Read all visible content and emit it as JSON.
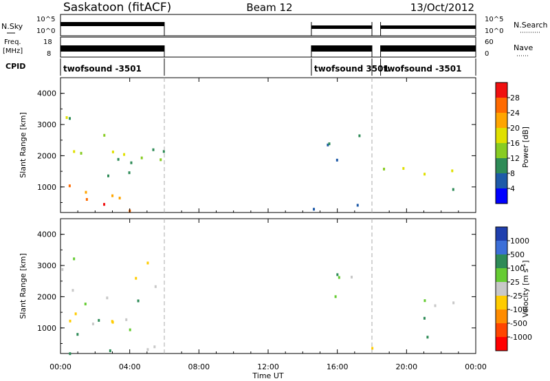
{
  "header": {
    "station": "Saskatoon (fitACF)",
    "beam": "Beam 12",
    "date": "13/Oct/2012"
  },
  "strips": {
    "nsky_label": "N.Sky",
    "nsky_ticks": [
      "10^5",
      "10^0"
    ],
    "nsearch_label": "N.Search",
    "nsearch_ticks": [
      "10^5",
      "10^0"
    ],
    "freq_label_line1": "Freq.",
    "freq_label_line2": "[MHz]",
    "freq_ticks": [
      "18",
      "8"
    ],
    "nave_label": "Nave",
    "nave_ticks": [
      "60",
      "0"
    ],
    "cpid_label": "CPID",
    "cpid_segments": [
      {
        "label": "twofsound -3501",
        "start": 0.0,
        "end": 6.0
      },
      {
        "label": "twofsound 3501",
        "start": 14.5,
        "end": 18.0
      },
      {
        "label": "twofsound -3501",
        "start": 18.5,
        "end": 24.0
      }
    ]
  },
  "axes": {
    "x_label": "Time UT",
    "x_ticks": [
      "00:00",
      "04:00",
      "08:00",
      "12:00",
      "16:00",
      "20:00",
      "00:00"
    ],
    "y_label": "Slant Range [km]",
    "y_ticks": [
      "4000",
      "3000",
      "2000",
      "1000"
    ]
  },
  "power_scale": {
    "title": "Power [dB]",
    "labels": [
      "28",
      "24",
      "20",
      "16",
      "12",
      "8",
      "4"
    ],
    "colors": [
      "#f01010",
      "#ff6a00",
      "#ffa500",
      "#e0e000",
      "#88cc22",
      "#2e8b57",
      "#1e5aa8",
      "#0000ff"
    ]
  },
  "velocity_scale": {
    "title": "Velocity [m s",
    "title_sup": "-1",
    "title_end": "]",
    "labels": [
      "1000",
      "500",
      "100",
      "25",
      "-25",
      "-100",
      "-500",
      "-1000"
    ],
    "colors": [
      "#1f3fae",
      "#3c6fd8",
      "#2e8b57",
      "#66cc33",
      "#c8c8c8",
      "#ffcc00",
      "#ff8c00",
      "#ff4500",
      "#ff0000"
    ]
  },
  "chart_data": {
    "type": "heatmap",
    "x_range_hours": [
      0,
      24
    ],
    "y_range_km": [
      180,
      4500
    ],
    "operation_periods_hours": [
      [
        0,
        6
      ],
      [
        14.5,
        18
      ],
      [
        18.5,
        24
      ]
    ],
    "power_panel": {
      "echo_regions": [
        {
          "t0": 0.0,
          "t1": 6.0,
          "r0": 200,
          "r1": 1200,
          "power_db": 26
        },
        {
          "t0": 0.0,
          "t1": 6.0,
          "r0": 1200,
          "r1": 3400,
          "power_db": 14
        },
        {
          "t0": 14.8,
          "t1": 17.3,
          "r0": 1200,
          "r1": 2800,
          "power_db": 8
        },
        {
          "t0": 14.5,
          "t1": 18.0,
          "r0": 200,
          "r1": 600,
          "power_db": 6
        },
        {
          "t0": 18.6,
          "t1": 24.0,
          "r0": 1400,
          "r1": 2000,
          "power_db": 15
        },
        {
          "t0": 21.5,
          "t1": 24.0,
          "r0": 700,
          "r1": 1000,
          "power_db": 8
        }
      ]
    },
    "velocity_panel": {
      "echo_regions": [
        {
          "t0": 0.0,
          "t1": 6.0,
          "r0": 200,
          "r1": 1100,
          "velocity_ms": 100
        },
        {
          "t0": 0.0,
          "t1": 6.0,
          "r0": 1100,
          "r1": 3500,
          "velocity_ms": 0
        },
        {
          "t0": 14.8,
          "t1": 17.3,
          "r0": 1300,
          "r1": 2800,
          "velocity_ms": 0
        },
        {
          "t0": 14.5,
          "t1": 18.0,
          "r0": 200,
          "r1": 500,
          "velocity_ms": -100
        },
        {
          "t0": 18.6,
          "t1": 24.0,
          "r0": 1300,
          "r1": 2000,
          "velocity_ms": 0
        },
        {
          "t0": 21.0,
          "t1": 24.0,
          "r0": 600,
          "r1": 1000,
          "velocity_ms": 100
        }
      ]
    }
  }
}
